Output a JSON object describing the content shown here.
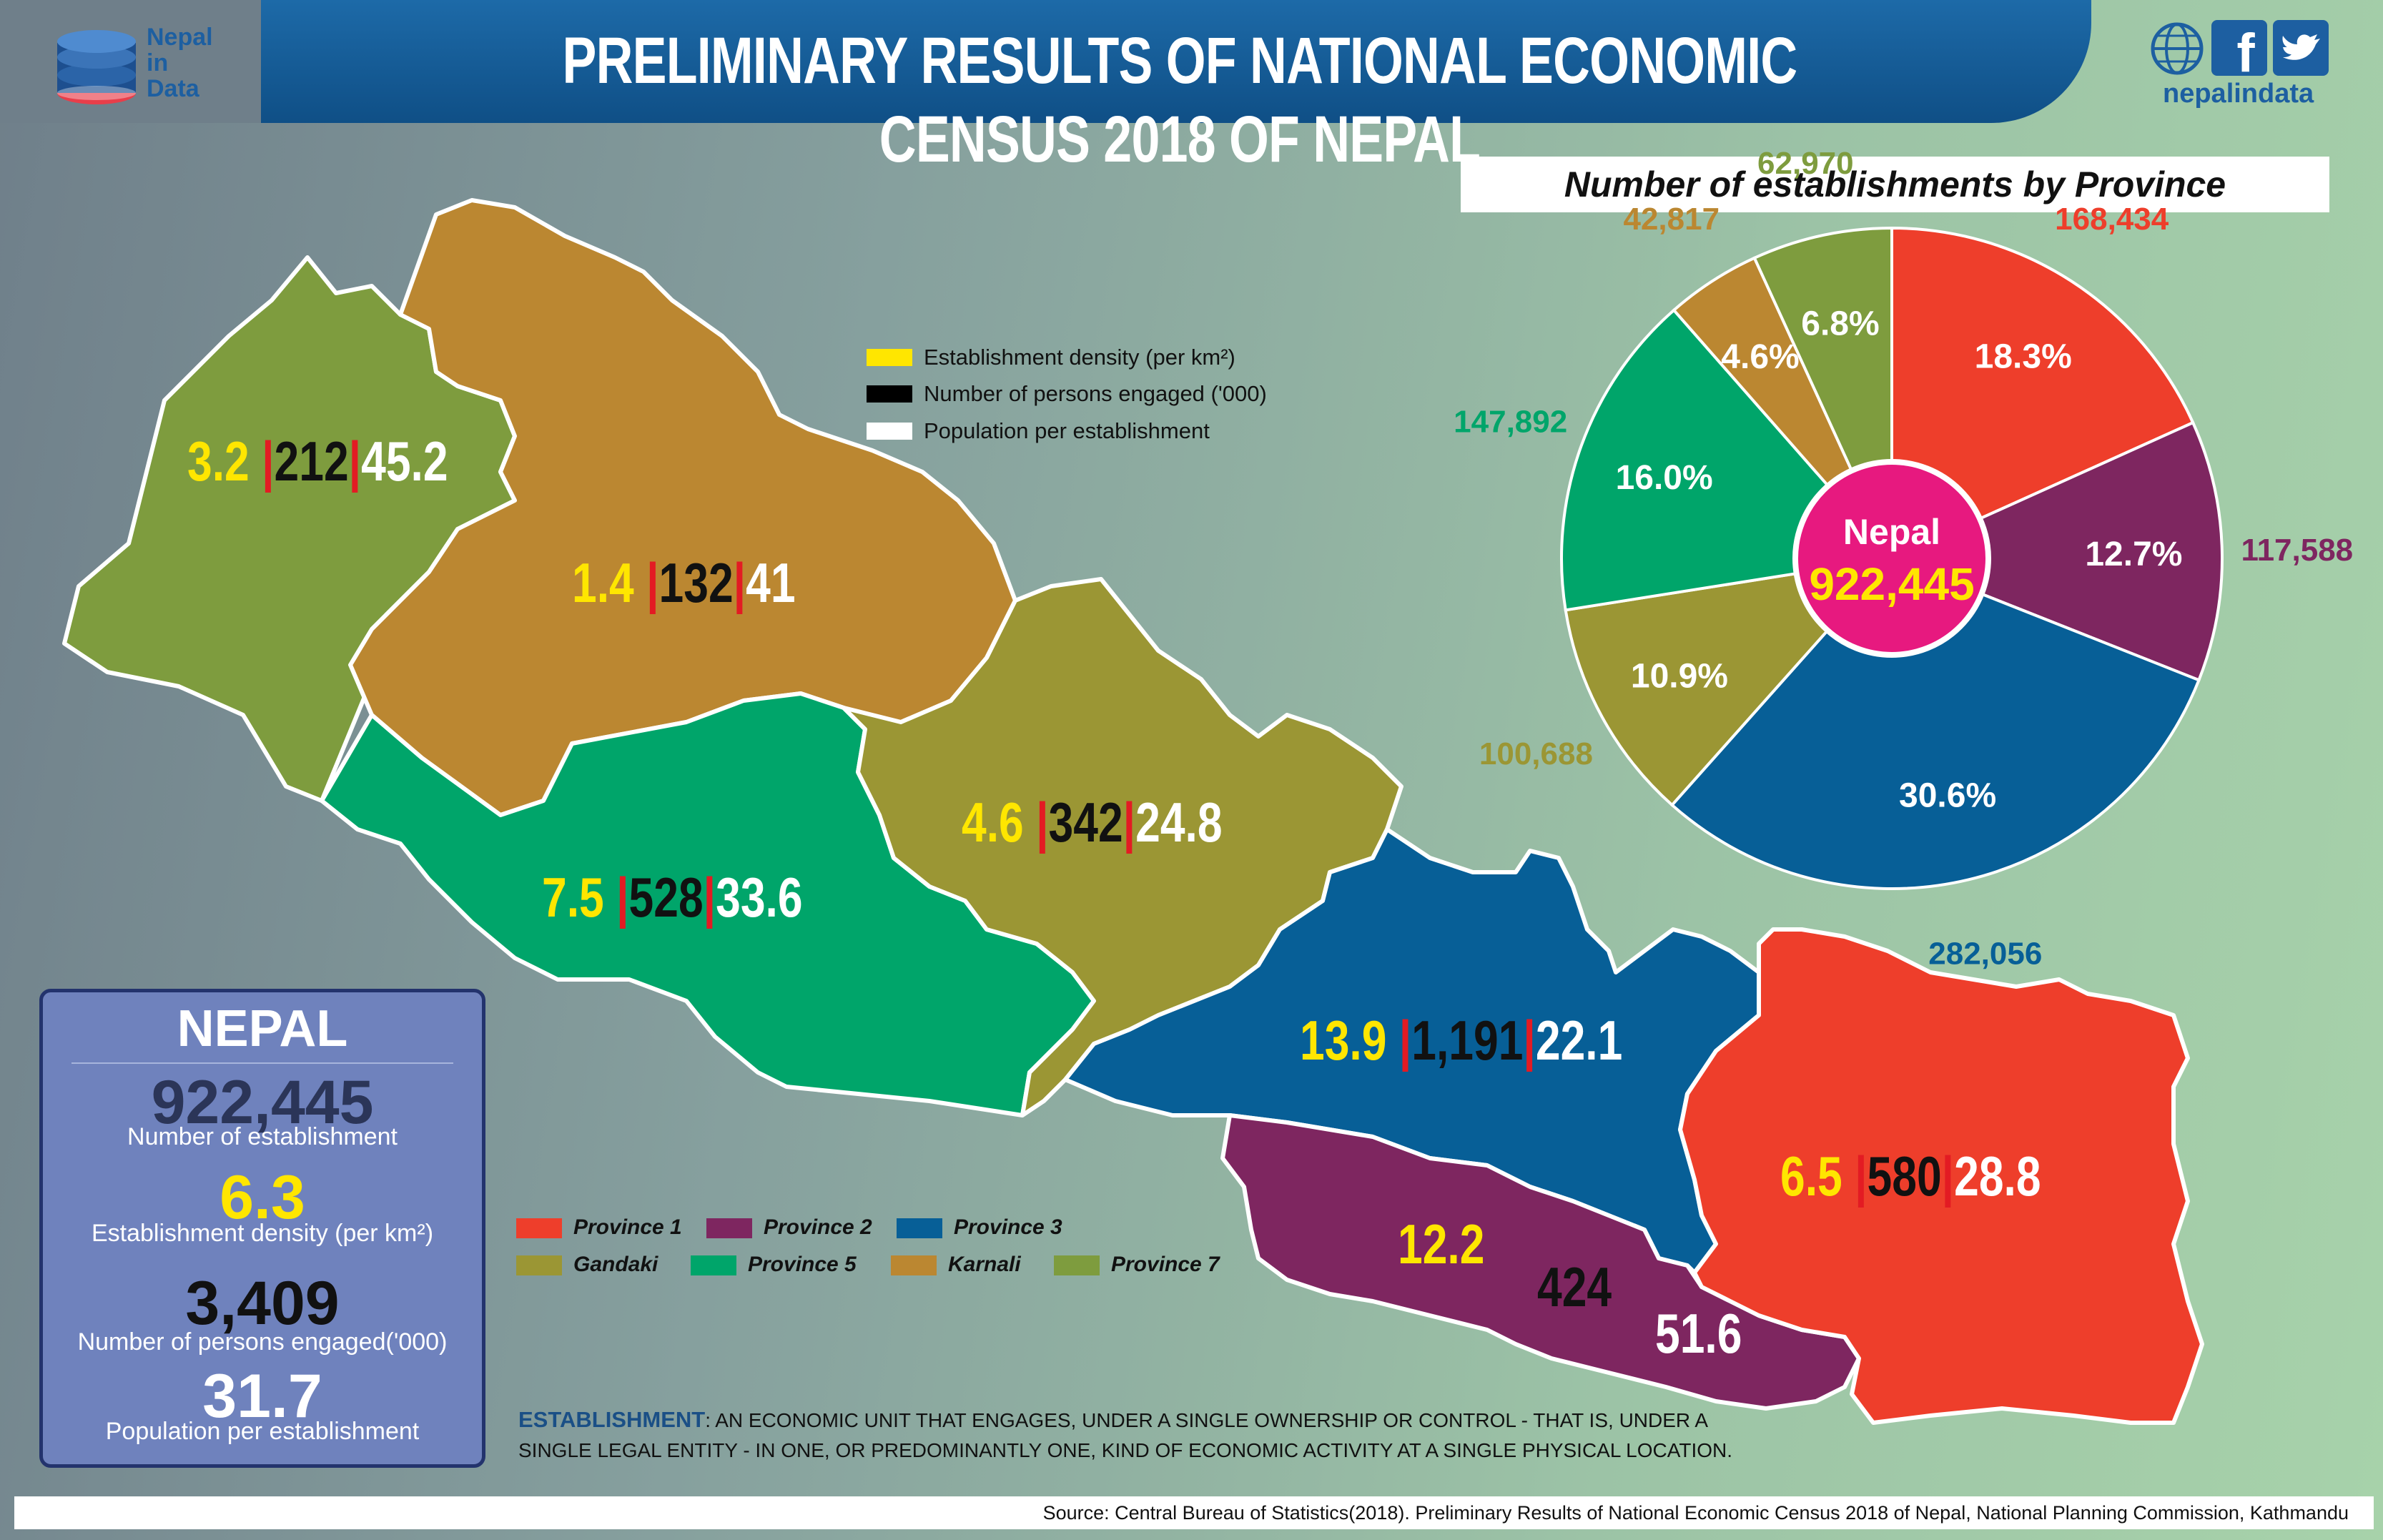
{
  "header": {
    "title": "PRELIMINARY RESULTS OF NATIONAL ECONOMIC CENSUS 2018 OF NEPAL",
    "logo_lines": [
      "Nepal",
      "in",
      "Data"
    ],
    "site_name": "nepalindata",
    "icons": [
      "globe-www-icon",
      "facebook-icon",
      "twitter-icon"
    ]
  },
  "map_legend": [
    {
      "label": "Establishment density (per km²)",
      "color": "#ffe600"
    },
    {
      "label": "Number of persons engaged ('000)",
      "color": "#000000"
    },
    {
      "label": "Population per establishment",
      "color": "#ffffff"
    }
  ],
  "provinces": [
    {
      "name": "Province 1",
      "color": "#ee3e2b",
      "density": "6.5",
      "persons": "580",
      "population": "28.8"
    },
    {
      "name": "Province 2",
      "color": "#7e2660",
      "density": "12.2",
      "persons": "424",
      "population": "51.6"
    },
    {
      "name": "Province 3",
      "color": "#075f97",
      "density": "13.9",
      "persons": "1,191",
      "population": "22.1"
    },
    {
      "name": "Gandaki",
      "color": "#9b9634",
      "density": "4.6",
      "persons": "342",
      "population": "24.8"
    },
    {
      "name": "Province 5",
      "color": "#00a56a",
      "density": "7.5",
      "persons": "528",
      "population": "33.6"
    },
    {
      "name": "Karnali",
      "color": "#bb8731",
      "density": "1.4",
      "persons": "132",
      "population": "41"
    },
    {
      "name": "Province 7",
      "color": "#7e9c3e",
      "density": "3.2",
      "persons": "212",
      "population": "45.2"
    }
  ],
  "chart_data": {
    "type": "pie",
    "title": "Number of establishments by Province",
    "center_label": "Nepal",
    "center_value": "922,445",
    "slices": [
      {
        "name": "Province 1",
        "value": 168434,
        "value_label": "168,434",
        "percent": "18.3",
        "color": "#ee3e2b"
      },
      {
        "name": "Province 2",
        "value": 117588,
        "value_label": "117,588",
        "percent": "12.7",
        "color": "#7e2660"
      },
      {
        "name": "Province 3",
        "value": 282056,
        "value_label": "282,056",
        "percent": "30.6",
        "color": "#075f97"
      },
      {
        "name": "Gandaki",
        "value": 100688,
        "value_label": "100,688",
        "percent": "10.9",
        "color": "#9b9634"
      },
      {
        "name": "Province 5",
        "value": 147892,
        "value_label": "147,892",
        "percent": "16.0",
        "color": "#00a56a"
      },
      {
        "name": "Karnali",
        "value": 42817,
        "value_label": "42,817",
        "percent": "4.6",
        "color": "#bb8731"
      },
      {
        "name": "Province 7",
        "value": 62970,
        "value_label": "62,970",
        "percent": "6.8",
        "color": "#7e9c3e"
      }
    ],
    "percent_suffix": "%"
  },
  "nepal_summary": {
    "title": "NEPAL",
    "establishments": "922,445",
    "establishments_label": "Number of establishment",
    "density": "6.3",
    "density_label": "Establishment density (per km²)",
    "persons": "3,409",
    "persons_label": "Number of persons engaged('000)",
    "population": "31.7",
    "population_label": "Population per establishment"
  },
  "definition": {
    "term": "ESTABLISHMENT",
    "text": ": AN ECONOMIC UNIT THAT ENGAGES, UNDER A SINGLE OWNERSHIP OR CONTROL - THAT IS, UNDER A SINGLE LEGAL ENTITY - IN ONE, OR PREDOMINANTLY ONE, KIND OF ECONOMIC ACTIVITY AT A SINGLE PHYSICAL LOCATION."
  },
  "source": "Source: Central Bureau of Statistics(2018). Preliminary Results of National Economic Census 2018 of Nepal, National Planning Commission, Kathmandu",
  "separator_color": "#e31b23"
}
